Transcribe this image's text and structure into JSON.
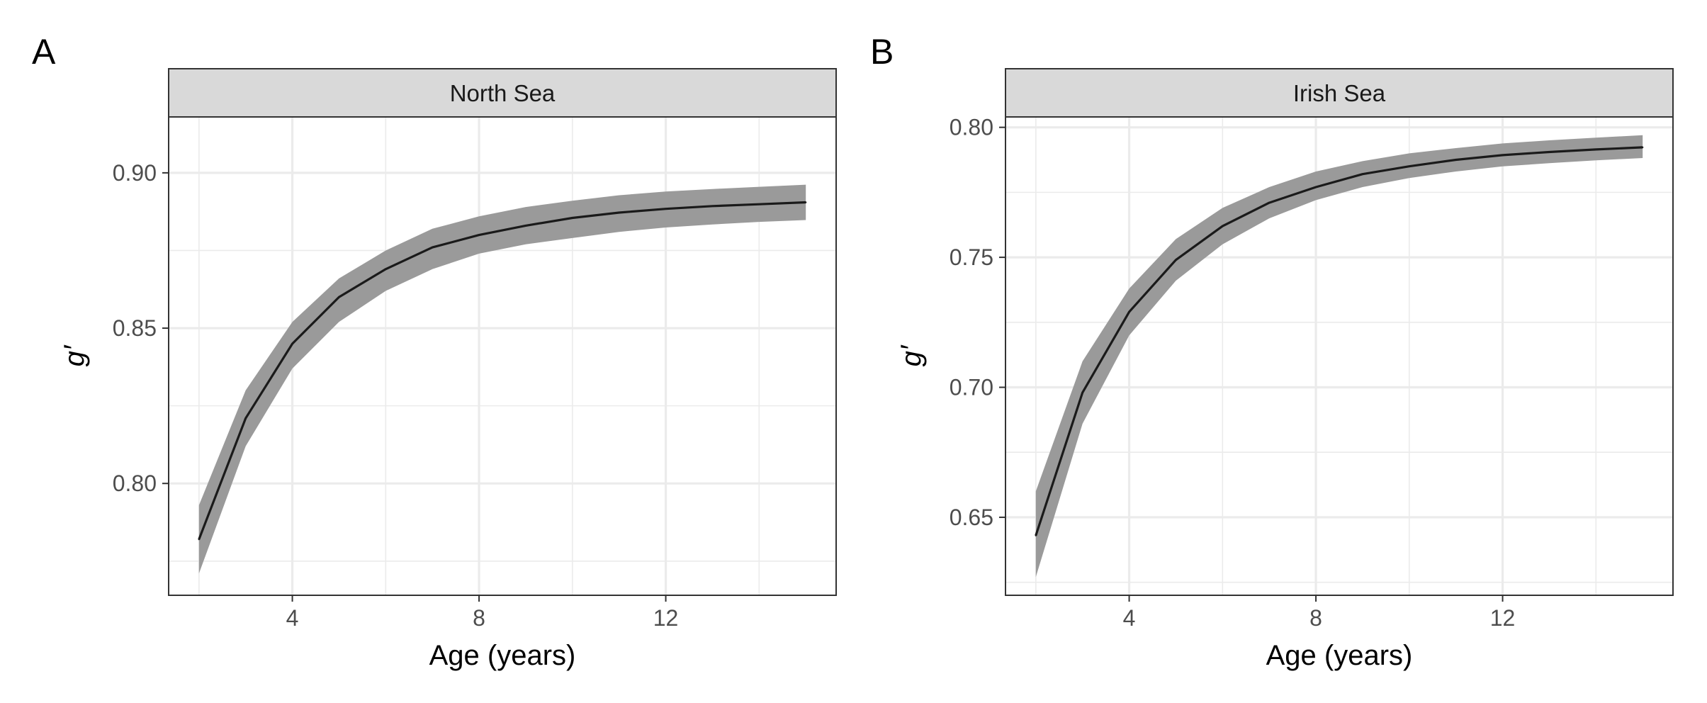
{
  "chart_data": [
    {
      "type": "area",
      "panel_label": "A",
      "facet": "North Sea",
      "xlabel": "Age (years)",
      "ylabel": "g′",
      "xlim": [
        1.35,
        15.65
      ],
      "ylim": [
        0.764,
        0.918
      ],
      "x_major_ticks": [
        4,
        8,
        12
      ],
      "x_tick_labels": [
        "4",
        "8",
        "12"
      ],
      "x_minor_ticks": [
        2,
        6,
        10,
        14
      ],
      "y_major_ticks": [
        0.8,
        0.85,
        0.9
      ],
      "y_tick_labels": [
        "0.80",
        "0.85",
        "0.90"
      ],
      "y_minor_ticks": [
        0.775,
        0.825,
        0.875
      ],
      "grid": true,
      "colors": {
        "line": "#1a1a1a",
        "ribbon": "#9a9a9a",
        "strip": "#d9d9d9",
        "grid": "#ebebeb",
        "border": "#333333"
      },
      "x": [
        2,
        3,
        4,
        5,
        6,
        7,
        8,
        9,
        10,
        11,
        12,
        13,
        14,
        15
      ],
      "y": [
        0.782,
        0.821,
        0.845,
        0.86,
        0.869,
        0.876,
        0.88,
        0.883,
        0.8855,
        0.8872,
        0.8884,
        0.8893,
        0.8899,
        0.8905
      ],
      "lower": [
        0.771,
        0.812,
        0.837,
        0.852,
        0.862,
        0.869,
        0.874,
        0.877,
        0.879,
        0.881,
        0.8824,
        0.8834,
        0.8842,
        0.8848
      ],
      "upper": [
        0.793,
        0.83,
        0.852,
        0.866,
        0.875,
        0.882,
        0.886,
        0.889,
        0.891,
        0.8928,
        0.894,
        0.8948,
        0.8955,
        0.8962
      ]
    },
    {
      "type": "area",
      "panel_label": "B",
      "facet": "Irish Sea",
      "xlabel": "Age (years)",
      "ylabel": "g′",
      "xlim": [
        1.35,
        15.65
      ],
      "ylim": [
        0.62,
        0.804
      ],
      "x_major_ticks": [
        4,
        8,
        12
      ],
      "x_tick_labels": [
        "4",
        "8",
        "12"
      ],
      "x_minor_ticks": [
        2,
        6,
        10,
        14
      ],
      "y_major_ticks": [
        0.65,
        0.7,
        0.75,
        0.8
      ],
      "y_tick_labels": [
        "0.65",
        "0.70",
        "0.75",
        "0.80"
      ],
      "y_minor_ticks": [
        0.625,
        0.675,
        0.725,
        0.775
      ],
      "grid": true,
      "colors": {
        "line": "#1a1a1a",
        "ribbon": "#9a9a9a",
        "strip": "#d9d9d9",
        "grid": "#ebebeb",
        "border": "#333333"
      },
      "x": [
        2,
        3,
        4,
        5,
        6,
        7,
        8,
        9,
        10,
        11,
        12,
        13,
        14,
        15
      ],
      "y": [
        0.643,
        0.698,
        0.729,
        0.749,
        0.762,
        0.771,
        0.777,
        0.782,
        0.785,
        0.7875,
        0.7893,
        0.7905,
        0.7915,
        0.7923
      ],
      "lower": [
        0.627,
        0.686,
        0.72,
        0.741,
        0.755,
        0.765,
        0.772,
        0.777,
        0.7805,
        0.783,
        0.785,
        0.7862,
        0.7873,
        0.7882
      ],
      "upper": [
        0.66,
        0.71,
        0.738,
        0.757,
        0.769,
        0.777,
        0.783,
        0.787,
        0.79,
        0.792,
        0.7938,
        0.795,
        0.796,
        0.797
      ]
    }
  ]
}
